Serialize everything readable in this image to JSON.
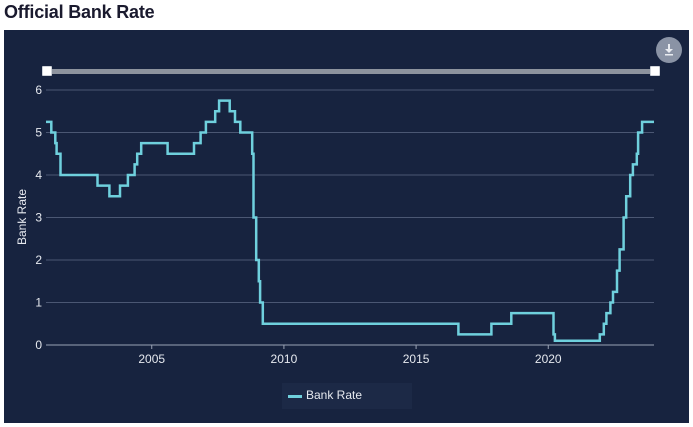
{
  "page": {
    "title": "Official Bank Rate"
  },
  "toolbar": {
    "download_icon": "download-icon"
  },
  "colors": {
    "background": "#17233f",
    "line": "#6fd0dd",
    "grid": "#4b5773",
    "text": "#e6e9ef"
  },
  "chart_data": {
    "type": "line",
    "title": "",
    "xlabel": "",
    "ylabel": "Bank Rate",
    "xlim": [
      2001.0,
      2024.0
    ],
    "ylim": [
      0,
      6
    ],
    "xticks": [
      2005,
      2010,
      2015,
      2020
    ],
    "yticks": [
      0,
      1,
      2,
      3,
      4,
      5,
      6
    ],
    "grid": true,
    "legend": "bottom-center",
    "interpolation": "step-after",
    "series": [
      {
        "name": "Bank Rate",
        "points": [
          [
            2001.0,
            5.25
          ],
          [
            2001.2,
            5.0
          ],
          [
            2001.35,
            4.75
          ],
          [
            2001.4,
            4.5
          ],
          [
            2001.55,
            4.0
          ],
          [
            2002.95,
            3.75
          ],
          [
            2003.4,
            3.5
          ],
          [
            2003.8,
            3.75
          ],
          [
            2004.1,
            4.0
          ],
          [
            2004.35,
            4.25
          ],
          [
            2004.45,
            4.5
          ],
          [
            2004.6,
            4.75
          ],
          [
            2005.6,
            4.5
          ],
          [
            2006.6,
            4.75
          ],
          [
            2006.85,
            5.0
          ],
          [
            2007.05,
            5.25
          ],
          [
            2007.4,
            5.5
          ],
          [
            2007.55,
            5.75
          ],
          [
            2007.95,
            5.5
          ],
          [
            2008.15,
            5.25
          ],
          [
            2008.35,
            5.0
          ],
          [
            2008.8,
            4.5
          ],
          [
            2008.85,
            3.0
          ],
          [
            2008.95,
            2.0
          ],
          [
            2009.05,
            1.5
          ],
          [
            2009.1,
            1.0
          ],
          [
            2009.2,
            0.5
          ],
          [
            2016.6,
            0.25
          ],
          [
            2017.85,
            0.5
          ],
          [
            2018.6,
            0.75
          ],
          [
            2020.2,
            0.25
          ],
          [
            2020.25,
            0.1
          ],
          [
            2021.95,
            0.25
          ],
          [
            2022.1,
            0.5
          ],
          [
            2022.2,
            0.75
          ],
          [
            2022.35,
            1.0
          ],
          [
            2022.45,
            1.25
          ],
          [
            2022.6,
            1.75
          ],
          [
            2022.7,
            2.25
          ],
          [
            2022.85,
            3.0
          ],
          [
            2022.95,
            3.5
          ],
          [
            2023.1,
            4.0
          ],
          [
            2023.2,
            4.25
          ],
          [
            2023.35,
            4.5
          ],
          [
            2023.4,
            5.0
          ],
          [
            2023.55,
            5.25
          ],
          [
            2024.0,
            5.25
          ]
        ]
      }
    ]
  }
}
